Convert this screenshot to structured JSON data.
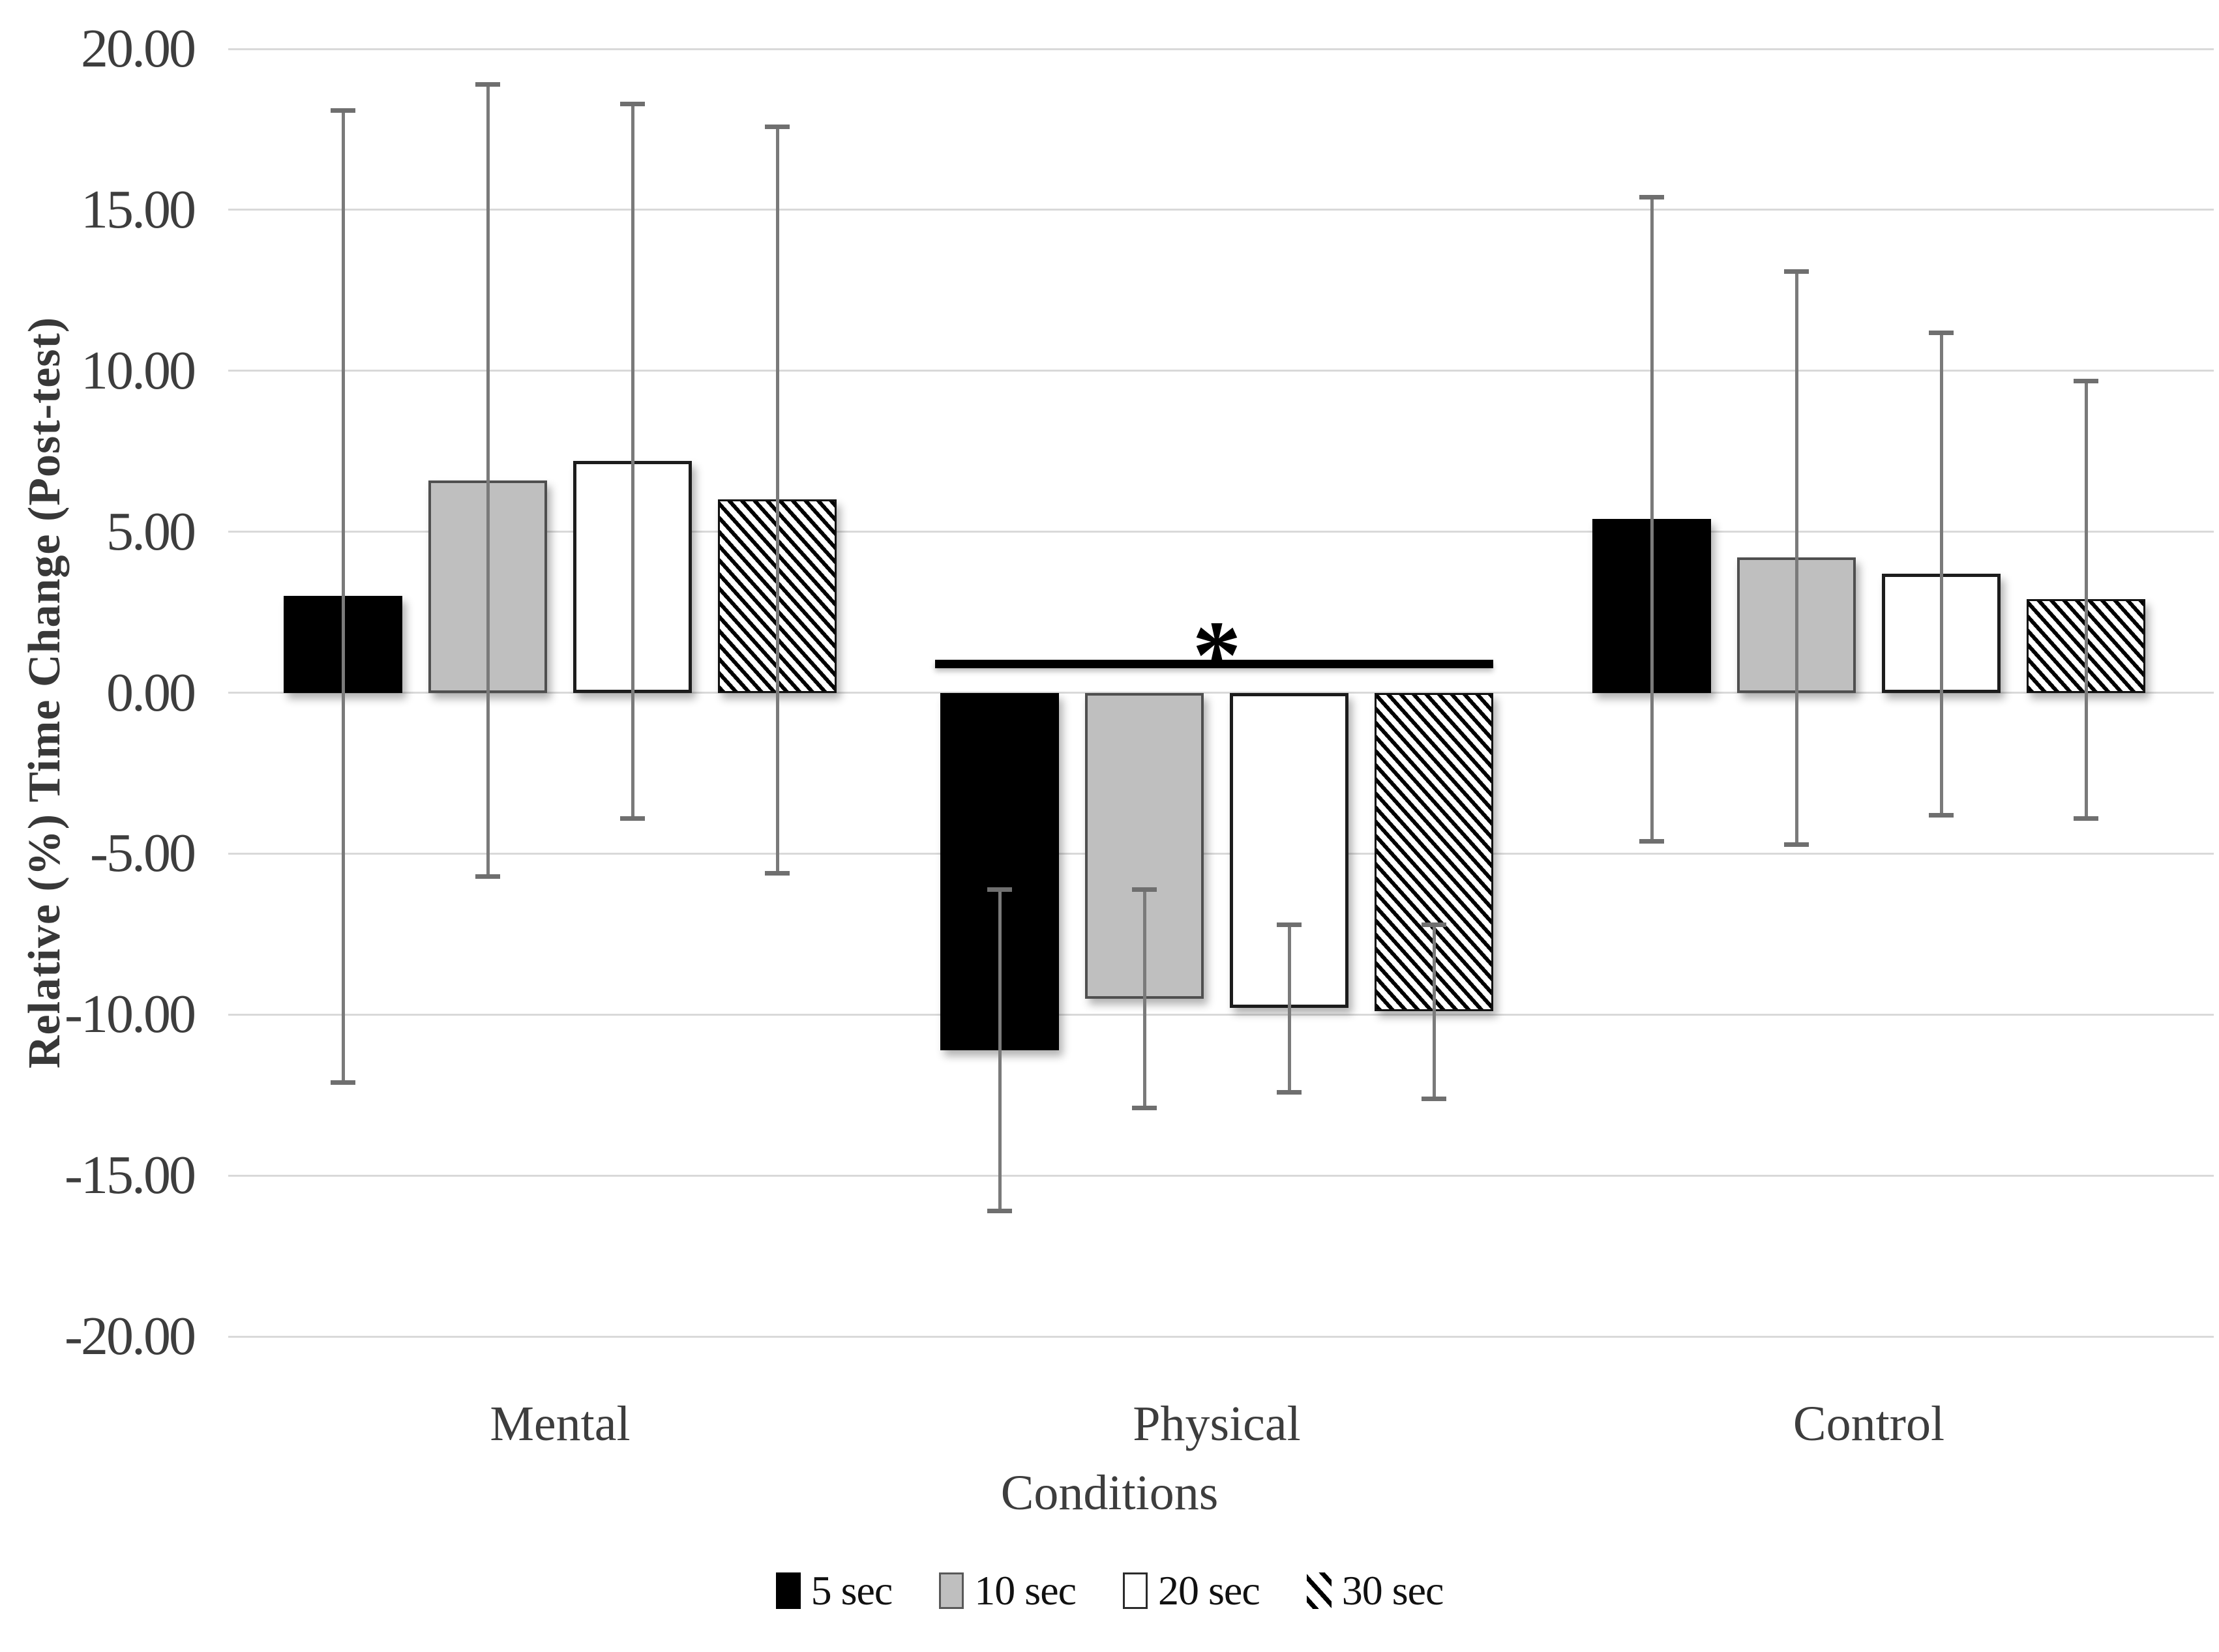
{
  "chart_data": {
    "type": "bar",
    "title": "",
    "xlabel": "Conditions",
    "ylabel": "Relative (%) Time Change (Post-test)",
    "categories": [
      "Mental",
      "Physical",
      "Control"
    ],
    "series": [
      {
        "name": "5 sec",
        "pattern": "solid-black",
        "fill": "#000000",
        "values": [
          3.0,
          -11.1,
          5.4
        ],
        "errors": [
          15.1,
          5.0,
          10.0
        ]
      },
      {
        "name": "10 sec",
        "pattern": "solid-gray",
        "fill": "#bfbfbf",
        "values": [
          6.6,
          -9.5,
          4.2
        ],
        "errors": [
          12.3,
          3.4,
          8.9
        ]
      },
      {
        "name": "20 sec",
        "pattern": "white-outline",
        "fill": "#ffffff",
        "values": [
          7.2,
          -9.8,
          3.7
        ],
        "errors": [
          11.1,
          2.6,
          7.5
        ]
      },
      {
        "name": "30 sec",
        "pattern": "diagonal-hatch",
        "fill": "hatch",
        "values": [
          6.0,
          -9.9,
          2.9
        ],
        "errors": [
          11.6,
          2.7,
          6.8
        ]
      }
    ],
    "ylim": [
      -20,
      20
    ],
    "ytick_step": 5,
    "ytick_decimals": 2,
    "ytick_labels": [
      "20.00",
      "15.00",
      "10.00",
      "5.00",
      "0.00",
      "-5.00",
      "-10.00",
      "-15.00",
      "-20.00"
    ],
    "grid": "horizontal",
    "gridline_color": "#d9d9d9",
    "error_bar_color": "#7a7a7a",
    "legend_position": "bottom",
    "annotation": {
      "text": "*",
      "category": "Physical",
      "line_y": 0.9
    }
  }
}
